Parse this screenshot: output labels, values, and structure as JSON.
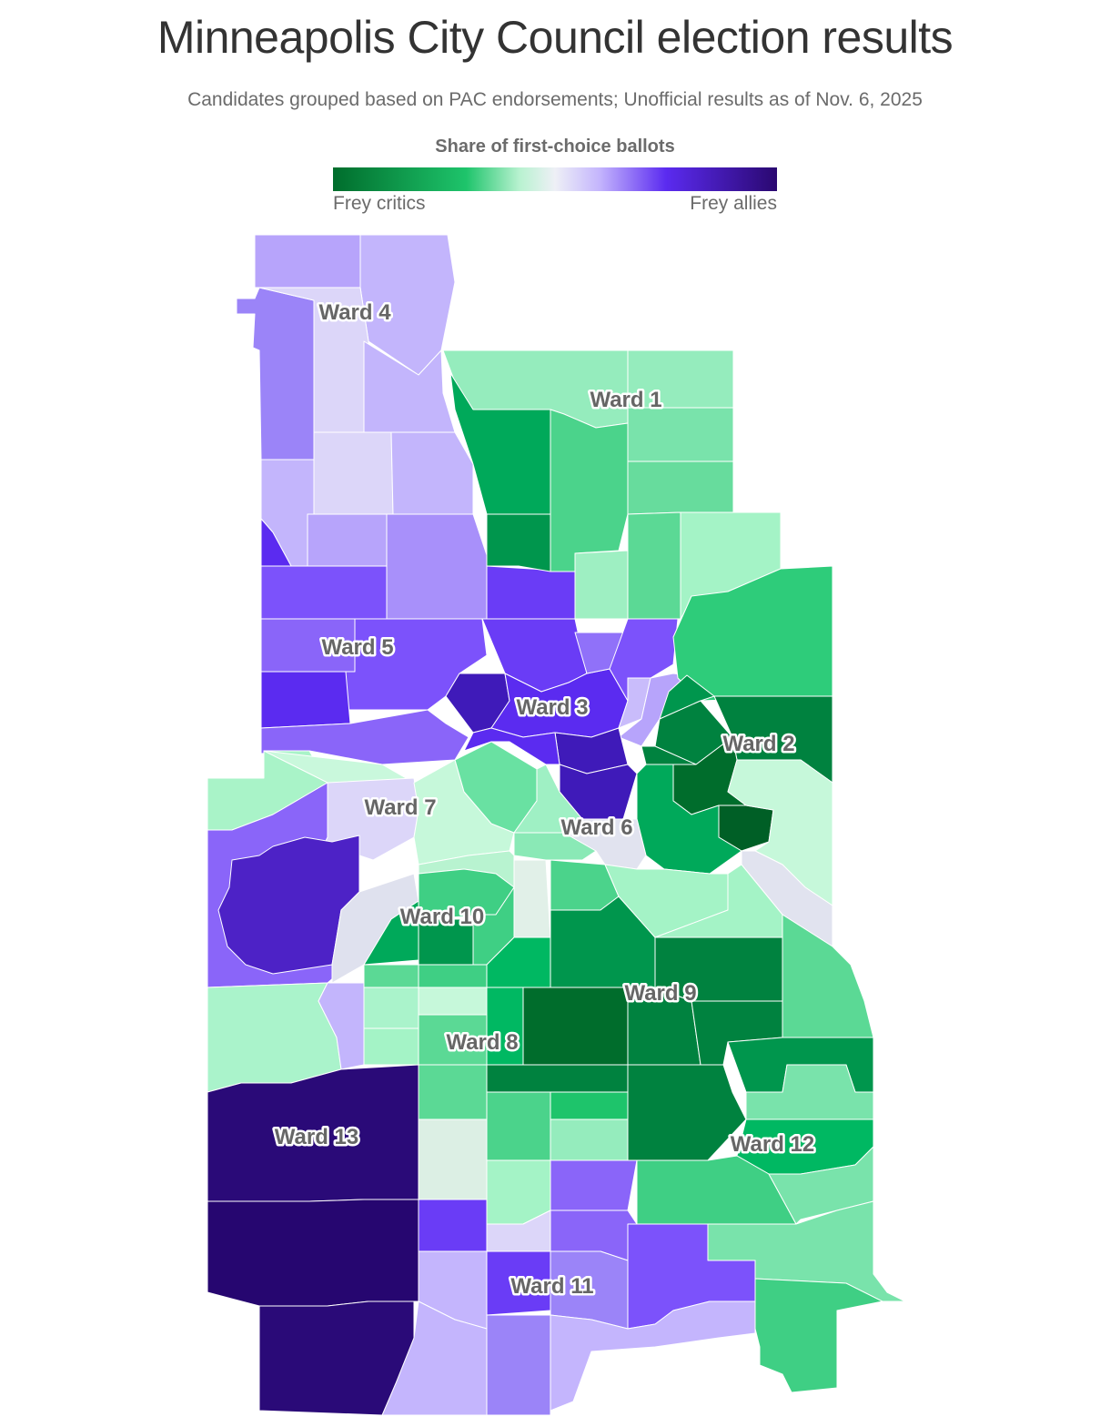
{
  "title": "Minneapolis City Council election results",
  "subtitle": "Candidates grouped based on PAC endorsements; Unofficial results as of Nov. 6, 2025",
  "legend": {
    "title": "Share of first-choice ballots",
    "low_label": "Frey critics",
    "high_label": "Frey allies",
    "colors": [
      "#006d2c",
      "#1ec46b",
      "#b8f2d0",
      "#eef0f6",
      "#c4b5fd",
      "#5b2bf0",
      "#2a0870"
    ]
  },
  "wards": [
    {
      "name": "Ward 1"
    },
    {
      "name": "Ward 2"
    },
    {
      "name": "Ward 3"
    },
    {
      "name": "Ward 4"
    },
    {
      "name": "Ward 5"
    },
    {
      "name": "Ward 6"
    },
    {
      "name": "Ward 7"
    },
    {
      "name": "Ward 8"
    },
    {
      "name": "Ward 9"
    },
    {
      "name": "Ward 10"
    },
    {
      "name": "Ward 11"
    },
    {
      "name": "Ward 12"
    },
    {
      "name": "Ward 13"
    }
  ]
}
